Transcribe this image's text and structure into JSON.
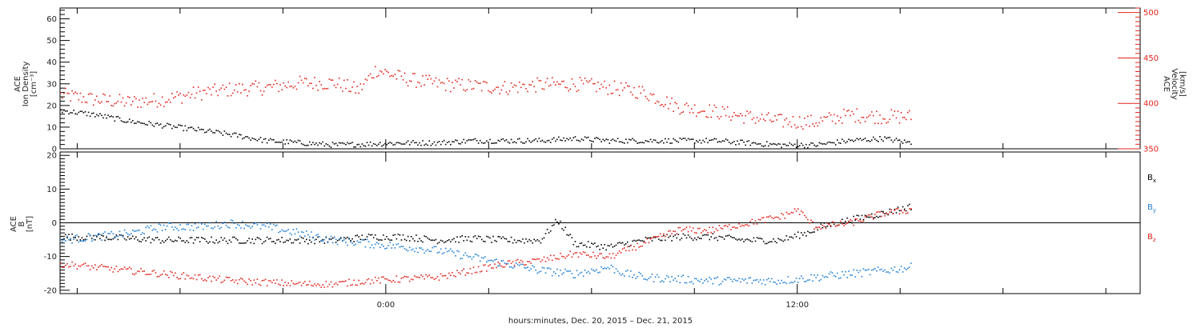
{
  "figure": {
    "xlabel": "hours:minutes, Dec. 20, 2015 – Dec. 21, 2015",
    "x_tick_labels": [
      {
        "hours": 0,
        "label": "0:00"
      },
      {
        "hours": 12,
        "label": "12:00"
      }
    ]
  },
  "panels": {
    "top": {
      "ylabel_left": [
        "ACE",
        "Ion Density",
        "[cm⁻³]"
      ],
      "ylabel_right": [
        "ACE",
        "Velocity",
        "[km/s]"
      ],
      "left_ticks": [
        "0",
        "10",
        "20",
        "30",
        "40",
        "50",
        "60"
      ],
      "right_ticks": [
        "350",
        "400",
        "450",
        "500"
      ]
    },
    "bottom": {
      "ylabel_left": [
        "ACE",
        "B",
        "[nT]"
      ],
      "left_ticks": [
        "-20",
        "-10",
        "0",
        "10",
        "20"
      ],
      "legend": [
        {
          "label": "Bx",
          "main": "B",
          "sub": "x",
          "color": "#000000"
        },
        {
          "label": "By",
          "main": "B",
          "sub": "y",
          "color": "#1f7fd6"
        },
        {
          "label": "Bz",
          "main": "B",
          "sub": "z",
          "color": "#e0241c"
        }
      ]
    }
  },
  "chart_data": [
    {
      "type": "scatter",
      "panel": "top",
      "xlabel": "hours:minutes, Dec. 20, 2015 – Dec. 21, 2015",
      "x_units": "hours relative to 2015-12-21 00:00",
      "xlim": [
        -9.5,
        22
      ],
      "grid": false,
      "series": [
        {
          "name": "ACE Ion Density",
          "axis": "left",
          "ylim": [
            0,
            65
          ],
          "ylabel": "ACE Ion Density [cm⁻³]",
          "color": "#000000",
          "x": [
            -9.5,
            -8.5,
            -7.5,
            -6.5,
            -5.5,
            -4.6,
            -4.2,
            -3.5,
            -2.5,
            -1.5,
            -0.5,
            0.5,
            1.5,
            2.5,
            3.5,
            4.5,
            5.5,
            6.5,
            7.5,
            8.5,
            9.5,
            10.5,
            11.5,
            12.5,
            13.5,
            14.5,
            15.3
          ],
          "y": [
            18,
            16,
            13,
            11,
            9,
            7,
            6,
            4,
            3,
            2,
            2.5,
            3,
            3,
            4,
            4,
            4,
            5,
            4,
            4,
            4,
            4,
            3,
            2,
            2,
            4,
            5,
            3
          ]
        },
        {
          "name": "ACE Velocity",
          "axis": "right",
          "ylim": [
            350,
            505
          ],
          "ylabel": "ACE Velocity [km/s]",
          "color": "#e0241c",
          "x": [
            -9.5,
            -8.5,
            -7.5,
            -6.5,
            -5.5,
            -4.5,
            -3.5,
            -2.5,
            -1.5,
            -0.8,
            -0.3,
            0.5,
            1.5,
            2.5,
            3.5,
            4.5,
            5.5,
            6.5,
            7.5,
            8.5,
            9.5,
            10.5,
            11.5,
            12.5,
            13.5,
            14.5,
            15.3
          ],
          "y": [
            410,
            405,
            402,
            405,
            412,
            416,
            418,
            423,
            423,
            415,
            438,
            428,
            422,
            420,
            418,
            421,
            422,
            418,
            413,
            397,
            392,
            386,
            381,
            380,
            388,
            386,
            386
          ]
        }
      ]
    },
    {
      "type": "scatter",
      "panel": "bottom",
      "ylabel": "ACE B [nT]",
      "x_units": "hours relative to 2015-12-21 00:00",
      "xlim": [
        -9.5,
        22
      ],
      "ylim": [
        -21,
        21
      ],
      "zero_line": true,
      "grid": false,
      "series": [
        {
          "name": "Bx",
          "color": "#000000",
          "x": [
            -9.5,
            -8.5,
            -7.5,
            -6.5,
            -5.5,
            -4.5,
            -3.5,
            -2.5,
            -1.5,
            -0.5,
            0.5,
            1.5,
            2.5,
            3.5,
            4.5,
            5.0,
            5.5,
            6.5,
            7.5,
            8.5,
            9.5,
            10.5,
            11.5,
            12.2,
            12.7,
            13.5,
            14.5,
            15.3
          ],
          "y": [
            -4,
            -4,
            -4.5,
            -5,
            -5,
            -5,
            -5,
            -5,
            -5,
            -4,
            -4,
            -5,
            -4.5,
            -5,
            -5,
            1,
            -6,
            -7,
            -5,
            -4,
            -4,
            -5,
            -5,
            -3,
            -1,
            1,
            3,
            5
          ]
        },
        {
          "name": "By",
          "color": "#1f7fd6",
          "x": [
            -9.5,
            -8.5,
            -7.5,
            -6.5,
            -5.5,
            -4.5,
            -3.5,
            -2.5,
            -1.5,
            -0.5,
            0.5,
            1.5,
            2.5,
            3.5,
            4.5,
            5.5,
            6.5,
            7.0,
            7.5,
            8.5,
            9.5,
            10.5,
            11.5,
            12.5,
            13.5,
            14.5,
            15.3
          ],
          "y": [
            -5,
            -4,
            -3,
            -1,
            -1,
            0,
            -1,
            -3,
            -5,
            -6,
            -7,
            -8,
            -10,
            -12,
            -14,
            -15,
            -13,
            -15,
            -16,
            -16.5,
            -17,
            -17,
            -17,
            -16,
            -15,
            -14,
            -13
          ]
        },
        {
          "name": "Bz",
          "color": "#e0241c",
          "x": [
            -9.5,
            -8.5,
            -7.5,
            -6.5,
            -5.5,
            -4.5,
            -3.5,
            -2.5,
            -1.5,
            -0.5,
            0.5,
            1.5,
            2.5,
            3.5,
            4.5,
            5.5,
            6.5,
            7.5,
            8.5,
            9.5,
            10.5,
            11.5,
            12.0,
            12.5,
            13.5,
            14.5,
            15.3
          ],
          "y": [
            -12,
            -13,
            -14,
            -15,
            -16,
            -17,
            -17.5,
            -18,
            -18,
            -17,
            -16.5,
            -16,
            -14,
            -12,
            -11,
            -9,
            -10,
            -6,
            -2,
            -2,
            0,
            2,
            4,
            -1,
            0,
            3,
            4
          ]
        }
      ]
    }
  ]
}
